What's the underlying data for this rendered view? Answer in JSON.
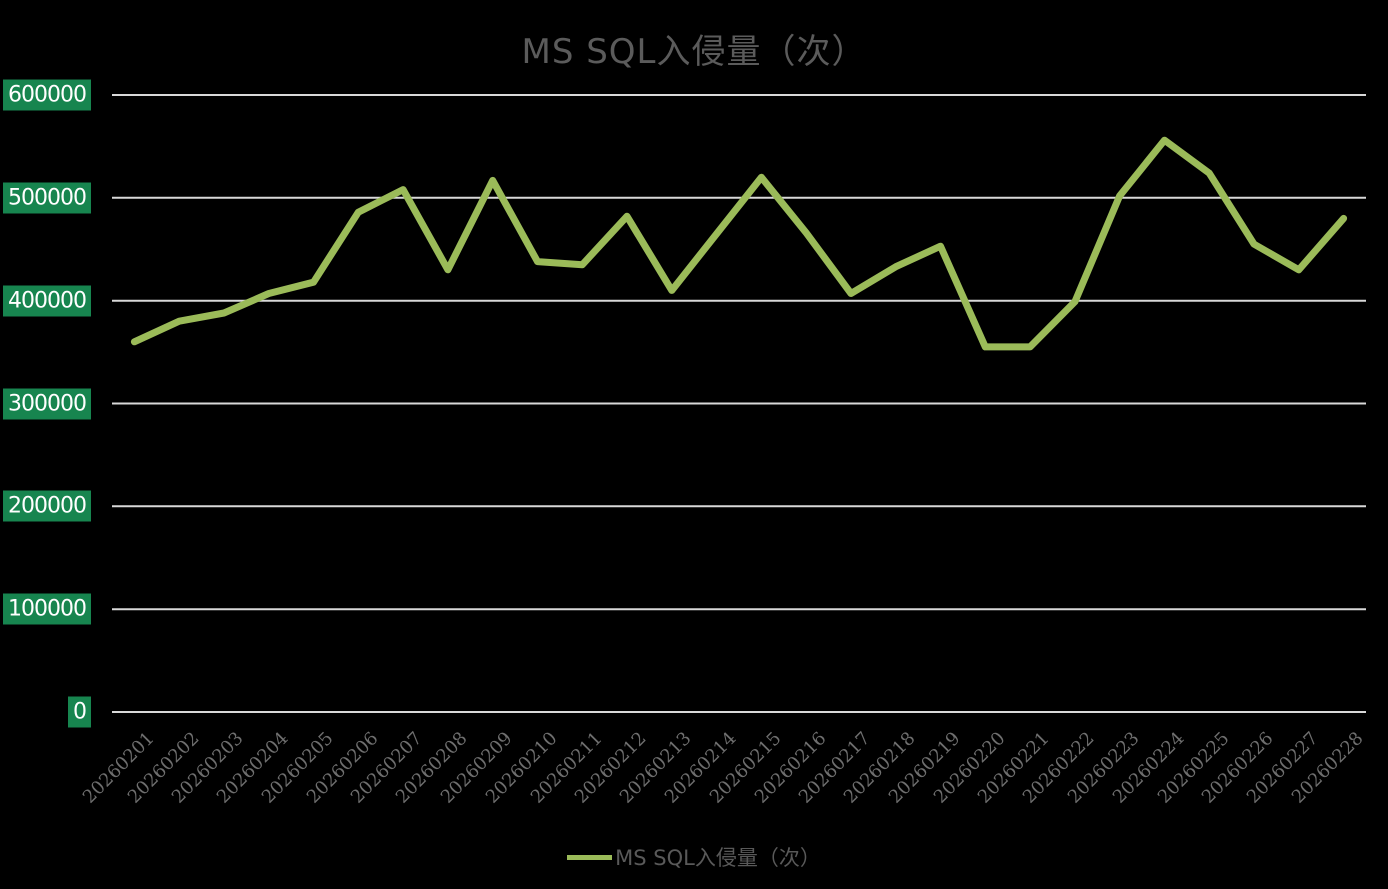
{
  "chart_data": {
    "type": "line",
    "title": "MS SQL入侵量（次）",
    "categories": [
      "20260201",
      "20260202",
      "20260203",
      "20260204",
      "20260205",
      "20260206",
      "20260207",
      "20260208",
      "20260209",
      "20260210",
      "20260211",
      "20260212",
      "20260213",
      "20260214",
      "20260215",
      "20260216",
      "20260217",
      "20260218",
      "20260219",
      "20260220",
      "20260221",
      "20260222",
      "20260223",
      "20260224",
      "20260225",
      "20260226",
      "20260227",
      "20260228"
    ],
    "series": [
      {
        "name": "MS SQL入侵量（次）",
        "values": [
          360000,
          380000,
          388000,
          407000,
          418000,
          486000,
          508000,
          430000,
          517000,
          438000,
          435000,
          482000,
          410000,
          465000,
          520000,
          466000,
          407000,
          433000,
          453000,
          355000,
          355000,
          399000,
          502000,
          556000,
          524000,
          455000,
          430000,
          480000
        ]
      }
    ],
    "xlabel": "",
    "ylabel": "",
    "ylim": [
      0,
      600000
    ],
    "y_ticks": [
      600000,
      500000,
      400000,
      300000,
      200000,
      100000,
      0
    ],
    "grid": "horizontal-only",
    "legend_position": "bottom",
    "colors": {
      "background": "#000000",
      "line": "#9BBB59",
      "gridline": "#D9D9D9",
      "title_text": "#5B5B5B",
      "xtick_text": "#6E6E6E",
      "ytick_bg": "#17854F",
      "ytick_text": "#FFFFFF",
      "legend_text": "#595959"
    }
  },
  "legend": {
    "label": "MS SQL入侵量（次）"
  }
}
